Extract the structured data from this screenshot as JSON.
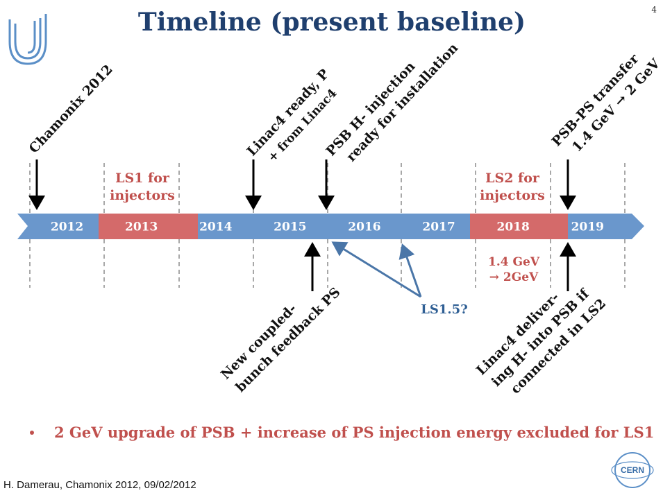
{
  "title": "Timeline (present baseline)",
  "page_number": "4",
  "years": [
    "2012",
    "2013",
    "2014",
    "2015",
    "2016",
    "2017",
    "2018",
    "2019"
  ],
  "shutdowns": [
    {
      "lines": [
        "LS1 for",
        "injectors"
      ]
    },
    {
      "lines": [
        "LS2 for",
        "injectors"
      ]
    }
  ],
  "energy_note": [
    "1.4 GeV",
    "→ 2GeV"
  ],
  "events_above": [
    {
      "lines": [
        "Chamonix 2012"
      ]
    },
    {
      "lines": [
        "Linac4 ready,  P",
        "+ from Linac4"
      ]
    },
    {
      "lines": [
        "PSB H- injection",
        "ready for installation"
      ]
    },
    {
      "lines": [
        "PSB-PS transfer",
        "1.4 GeV → 2 GeV"
      ]
    }
  ],
  "events_below": [
    {
      "lines": [
        "New coupled-",
        "bunch feedback PS"
      ]
    },
    {
      "lines": [
        "Linac4 deliver-",
        "ing H- into PSB if",
        "connected in LS2"
      ]
    }
  ],
  "ls15_label": "LS1.5?",
  "bullet": "2 GeV upgrade of PSB + increase of PS injection energy excluded for LS1",
  "footer": "H. Damerau, Chamonix 2012, 09/02/2012",
  "cern_logo": "CERN"
}
